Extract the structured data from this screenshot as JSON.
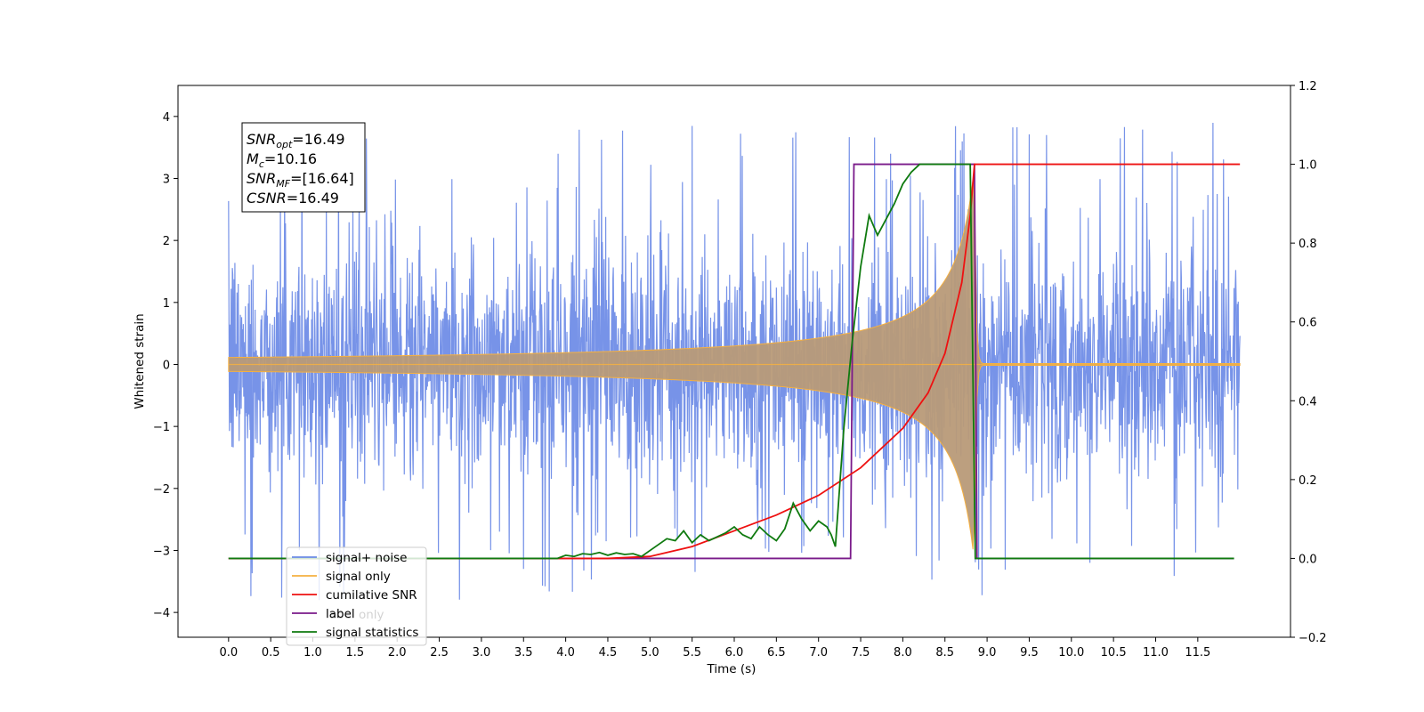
{
  "chart_data": {
    "type": "line",
    "xlabel": "Time (s)",
    "ylabel": "Whitened strain",
    "xlim": [
      -0.6,
      12.6
    ],
    "ylim": [
      -4.4,
      4.5
    ],
    "y2lim": [
      -0.2,
      1.2
    ],
    "x_ticks": [
      "0.0",
      "0.5",
      "1.0",
      "1.5",
      "2.0",
      "2.5",
      "3.0",
      "3.5",
      "4.0",
      "4.5",
      "5.0",
      "5.5",
      "6.0",
      "6.5",
      "7.0",
      "7.5",
      "8.0",
      "8.5",
      "9.0",
      "9.5",
      "10.0",
      "10.5",
      "11.0",
      "11.5"
    ],
    "y_ticks": [
      "4",
      "3",
      "2",
      "1",
      "0",
      "−1",
      "−2",
      "−3",
      "−4"
    ],
    "y2_ticks": [
      "1.2",
      "1.0",
      "0.8",
      "0.6",
      "0.4",
      "0.2",
      "0.0",
      "−0.2"
    ],
    "grid": false,
    "legend_position": "lower-left",
    "colors": {
      "signal_noise": "#6b8ae6",
      "signal_only": "#f5b041",
      "signal_overlap": "#b89a78",
      "cumulative_snr": "#ee1111",
      "label": "#7a1a8a",
      "signal_statistics": "#0f7a0f"
    },
    "annotation": [
      {
        "base": "SNR",
        "sub": "opt",
        "value": "=16.49"
      },
      {
        "base": "M",
        "sub": "c",
        "value": "=10.16"
      },
      {
        "base": "SNR",
        "sub": "MF",
        "value": "=[16.64]"
      },
      {
        "base": "CSNR",
        "sub": "",
        "value": "=16.49"
      }
    ],
    "series": [
      {
        "name": "signal+ noise",
        "axis": "left",
        "description_values": "white-noise-like strain spanning roughly -2.5 to 2.5 with spikes to about ±4 over 0–12 s",
        "x_range": [
          0.0,
          12.0
        ],
        "typical_amplitude": 2.5,
        "peak_max": 4.1,
        "peak_min": -3.8
      },
      {
        "name": "signal only",
        "axis": "left",
        "chirp": {
          "start": 0.0,
          "merger": 8.85,
          "end": 12.0,
          "amplitude_at_merger": 3.2
        }
      },
      {
        "name": "cumilative SNR",
        "axis": "right",
        "x": [
          0.0,
          4.5,
          5.0,
          5.5,
          6.0,
          6.5,
          7.0,
          7.5,
          8.0,
          8.3,
          8.5,
          8.7,
          8.8,
          8.85,
          8.88,
          12.0
        ],
        "y": [
          0.0,
          0.0,
          0.005,
          0.03,
          0.07,
          0.11,
          0.16,
          0.23,
          0.33,
          0.42,
          0.52,
          0.7,
          0.87,
          1.0,
          1.0,
          1.0
        ]
      },
      {
        "name": "label",
        "axis": "right",
        "x": [
          0.0,
          7.38,
          7.42,
          8.85,
          8.88,
          11.93
        ],
        "y": [
          0.0,
          0.0,
          1.0,
          1.0,
          0.0,
          0.0
        ]
      },
      {
        "name": "signal statistics",
        "axis": "right",
        "x": [
          0.0,
          3.9,
          4.0,
          4.1,
          4.2,
          4.3,
          4.4,
          4.5,
          4.6,
          4.7,
          4.8,
          4.9,
          5.0,
          5.1,
          5.2,
          5.3,
          5.4,
          5.5,
          5.6,
          5.7,
          5.8,
          5.9,
          6.0,
          6.1,
          6.2,
          6.3,
          6.4,
          6.5,
          6.6,
          6.7,
          6.8,
          6.9,
          7.0,
          7.1,
          7.15,
          7.2,
          7.3,
          7.4,
          7.5,
          7.6,
          7.7,
          7.8,
          7.9,
          8.0,
          8.1,
          8.2,
          8.5,
          8.8,
          8.86,
          8.9,
          11.93
        ],
        "y": [
          0.0,
          0.0,
          0.008,
          0.005,
          0.012,
          0.01,
          0.015,
          0.008,
          0.014,
          0.01,
          0.012,
          0.005,
          0.02,
          0.035,
          0.05,
          0.045,
          0.07,
          0.04,
          0.06,
          0.045,
          0.055,
          0.065,
          0.08,
          0.06,
          0.05,
          0.08,
          0.06,
          0.045,
          0.075,
          0.14,
          0.1,
          0.07,
          0.095,
          0.08,
          0.06,
          0.03,
          0.33,
          0.55,
          0.74,
          0.87,
          0.82,
          0.86,
          0.9,
          0.95,
          0.98,
          1.0,
          1.0,
          1.0,
          0.0,
          0.0,
          0.0
        ]
      },
      {
        "name": "label only",
        "axis": "right",
        "legend_only_hidden": true
      }
    ],
    "legend": [
      {
        "label": "signal+ noise",
        "color_key": "signal_noise"
      },
      {
        "label": "signal only",
        "color_key": "signal_only"
      },
      {
        "label": "cumilative SNR",
        "color_key": "cumulative_snr"
      },
      {
        "label": "label",
        "color_key": "label"
      },
      {
        "label": "signal statistics",
        "color_key": "signal_statistics"
      }
    ],
    "hidden_legend_text": "label only"
  }
}
